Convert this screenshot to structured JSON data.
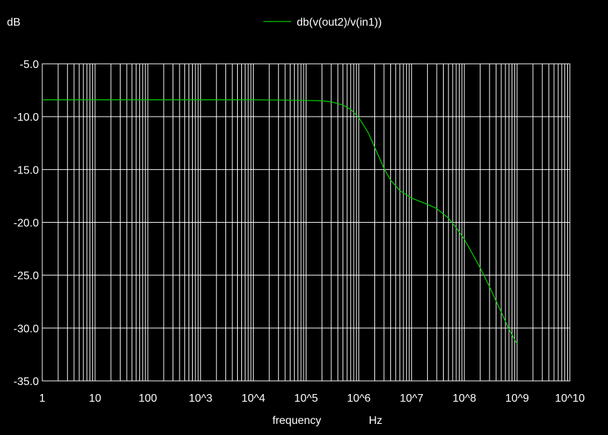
{
  "chart_data": {
    "type": "line",
    "ylabel": "dB",
    "xlabel": "frequency",
    "xunit": "Hz",
    "xscale": "log",
    "xlim": [
      1,
      10000000000
    ],
    "ylim": [
      -35,
      -5
    ],
    "grid": true,
    "legend_position": "top-center",
    "x_ticks": [
      1,
      10,
      100,
      1000,
      10000,
      100000,
      1000000,
      10000000,
      100000000,
      1000000000,
      10000000000
    ],
    "x_tick_labels": [
      "1",
      "10",
      "100",
      "10^3",
      "10^4",
      "10^5",
      "10^6",
      "10^7",
      "10^8",
      "10^9",
      "10^10"
    ],
    "y_ticks": [
      -5,
      -10,
      -15,
      -20,
      -25,
      -30,
      -35
    ],
    "y_tick_labels": [
      "-5.0",
      "-10.0",
      "-15.0",
      "-20.0",
      "-25.0",
      "-30.0",
      "-35.0"
    ],
    "series": [
      {
        "name": "db(v(out2)/v(in1))",
        "color": "#00cc00",
        "x": [
          1,
          10,
          100,
          1000,
          10000,
          100000,
          200000,
          300000,
          500000,
          700000,
          1000000,
          1500000,
          2000000,
          3000000,
          4000000,
          6000000,
          10000000,
          20000000,
          30000000,
          50000000,
          70000000,
          100000000,
          200000000,
          300000000,
          500000000,
          700000000,
          1000000000
        ],
        "y": [
          -8.4,
          -8.4,
          -8.4,
          -8.4,
          -8.4,
          -8.45,
          -8.5,
          -8.6,
          -8.9,
          -9.3,
          -10.1,
          -11.5,
          -12.9,
          -14.9,
          -16.0,
          -17.0,
          -17.7,
          -18.3,
          -18.7,
          -19.6,
          -20.5,
          -21.6,
          -24.3,
          -26.1,
          -28.5,
          -30.1,
          -31.5
        ]
      }
    ]
  }
}
